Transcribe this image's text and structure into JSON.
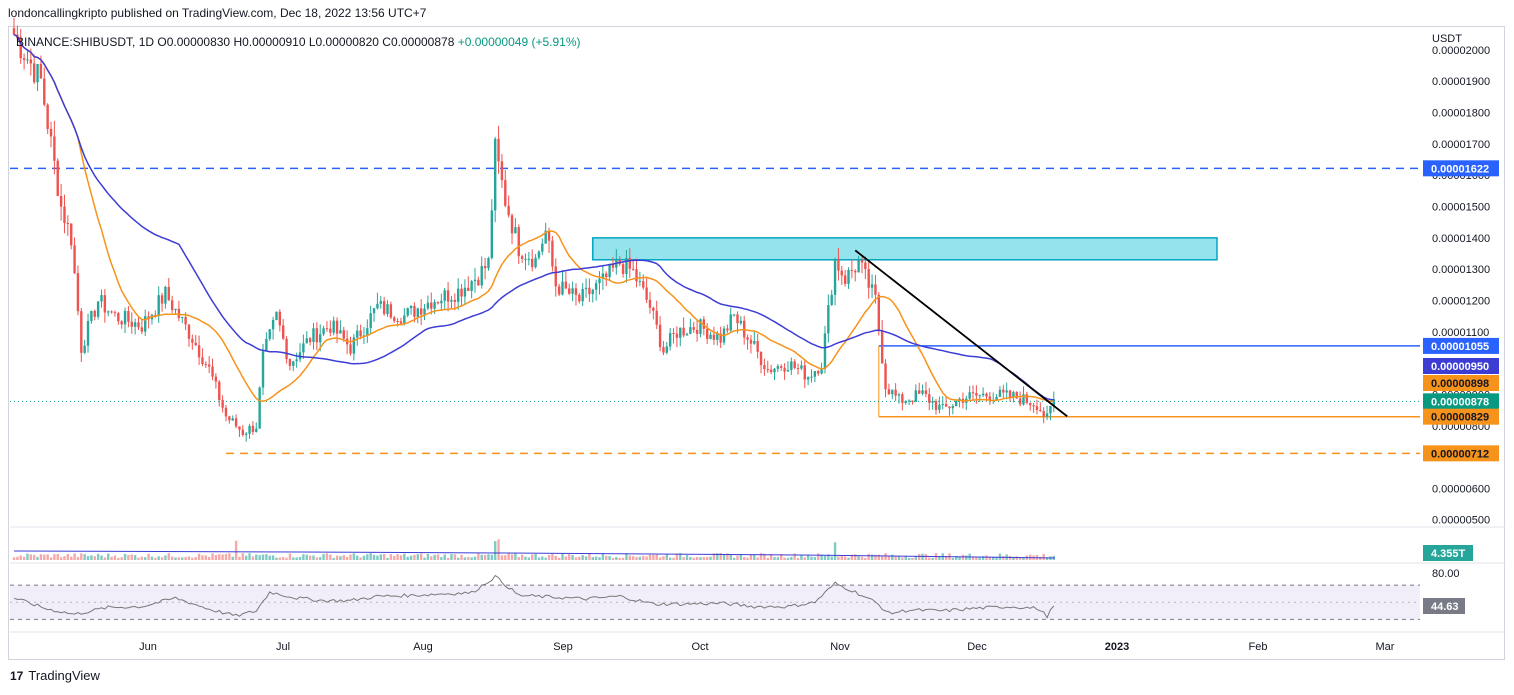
{
  "header": {
    "publisher": "londoncallingkripto published on TradingView.com, Dec 18, 2022 13:56 UTC+7"
  },
  "legend": {
    "symbol": "BINANCE:SHIBUSDT, 1D",
    "open": "O0.00000830",
    "high": "H0.00000910",
    "low": "L0.00000820",
    "close": "C0.00000878",
    "change": "+0.00000049 (+5.91%)"
  },
  "currency": "USDT",
  "footer": {
    "brand": "TradingView"
  },
  "colors": {
    "up": "#26a69a",
    "down": "#ef5350",
    "ma_fast": "#f7931a",
    "ma_slow": "#3d3dd6",
    "level": "#2962ff",
    "support": "#f7931a",
    "zone": "#4dd0e1",
    "last": "#089981",
    "rsi": "#7e57c2"
  },
  "chart_data": {
    "type": "candlestick",
    "ylim": [
      4.8e-06,
      2.07e-05
    ],
    "y_ticks": [
      "0.00000500",
      "0.00000600",
      "0.00000700",
      "0.00000800",
      "0.00000900",
      "0.00001000",
      "0.00001100",
      "0.00001200",
      "0.00001300",
      "0.00001400",
      "0.00001500",
      "0.00001600",
      "0.00001700",
      "0.00001800",
      "0.00001900",
      "0.00002000"
    ],
    "x_labels": [
      "Jun",
      "Jul",
      "Aug",
      "Sep",
      "Oct",
      "Nov",
      "Dec",
      "2023",
      "Feb",
      "Mar"
    ],
    "price_labels": {
      "resistance_top": "0.00001622",
      "resistance_mid": "0.00001055",
      "ma_slow": "0.00000950",
      "ma_fast": "0.00000898",
      "last": "0.00000878",
      "support": "0.00000829",
      "low_support": "0.00000712"
    },
    "levels": {
      "resistance_top": 1.622e-05,
      "resistance_mid": 1.055e-05,
      "support": 8.29e-06,
      "low_support": 7.12e-06,
      "last": 8.78e-06
    },
    "zone": {
      "low": 1.33e-05,
      "high": 1.4e-05
    },
    "trendline": {
      "start_price": 1.36e-05,
      "end_price": 8.3e-06
    },
    "anchors": [
      {
        "i": 0,
        "p": 2.05e-05
      },
      {
        "i": 8,
        "p": 1.9e-05
      },
      {
        "i": 14,
        "p": 1.5e-05
      },
      {
        "i": 17,
        "p": 1.4e-05
      },
      {
        "i": 20,
        "p": 1.05e-05
      },
      {
        "i": 25,
        "p": 1.2e-05
      },
      {
        "i": 30,
        "p": 1.15e-05
      },
      {
        "i": 38,
        "p": 1.12e-05
      },
      {
        "i": 45,
        "p": 1.22e-05
      },
      {
        "i": 53,
        "p": 1.08e-05
      },
      {
        "i": 58,
        "p": 9.8e-06
      },
      {
        "i": 63,
        "p": 8.3e-06
      },
      {
        "i": 68,
        "p": 7.8e-06
      },
      {
        "i": 72,
        "p": 8e-06
      },
      {
        "i": 74,
        "p": 1.02e-05
      },
      {
        "i": 78,
        "p": 1.15e-05
      },
      {
        "i": 82,
        "p": 1e-05
      },
      {
        "i": 88,
        "p": 1.08e-05
      },
      {
        "i": 94,
        "p": 1.12e-05
      },
      {
        "i": 100,
        "p": 1.05e-05
      },
      {
        "i": 108,
        "p": 1.18e-05
      },
      {
        "i": 116,
        "p": 1.15e-05
      },
      {
        "i": 124,
        "p": 1.2e-05
      },
      {
        "i": 132,
        "p": 1.23e-05
      },
      {
        "i": 138,
        "p": 1.28e-05
      },
      {
        "i": 141,
        "p": 1.32e-05
      },
      {
        "i": 143,
        "p": 1.68e-05
      },
      {
        "i": 146,
        "p": 1.52e-05
      },
      {
        "i": 150,
        "p": 1.37e-05
      },
      {
        "i": 155,
        "p": 1.33e-05
      },
      {
        "i": 158,
        "p": 1.42e-05
      },
      {
        "i": 161,
        "p": 1.25e-05
      },
      {
        "i": 168,
        "p": 1.2e-05
      },
      {
        "i": 175,
        "p": 1.26e-05
      },
      {
        "i": 180,
        "p": 1.32e-05
      },
      {
        "i": 184,
        "p": 1.29e-05
      },
      {
        "i": 189,
        "p": 1.18e-05
      },
      {
        "i": 193,
        "p": 1.04e-05
      },
      {
        "i": 197,
        "p": 1.1e-05
      },
      {
        "i": 203,
        "p": 1.12e-05
      },
      {
        "i": 210,
        "p": 1.08e-05
      },
      {
        "i": 214,
        "p": 1.15e-05
      },
      {
        "i": 220,
        "p": 1.05e-05
      },
      {
        "i": 224,
        "p": 9.8e-06
      },
      {
        "i": 230,
        "p": 1e-05
      },
      {
        "i": 236,
        "p": 9.6e-06
      },
      {
        "i": 240,
        "p": 1e-05
      },
      {
        "i": 244,
        "p": 1.33e-05
      },
      {
        "i": 247,
        "p": 1.27e-05
      },
      {
        "i": 251,
        "p": 1.32e-05
      },
      {
        "i": 256,
        "p": 1.2e-05
      },
      {
        "i": 259,
        "p": 9.3e-06
      },
      {
        "i": 263,
        "p": 8.8e-06
      },
      {
        "i": 270,
        "p": 9e-06
      },
      {
        "i": 276,
        "p": 8.5e-06
      },
      {
        "i": 282,
        "p": 8.9e-06
      },
      {
        "i": 290,
        "p": 9e-06
      },
      {
        "i": 298,
        "p": 8.9e-06
      },
      {
        "i": 304,
        "p": 8.7e-06
      },
      {
        "i": 307,
        "p": 8.2e-06
      },
      {
        "i": 309,
        "p": 8.8e-06
      }
    ],
    "volume": {
      "label": "4.355T"
    },
    "rsi": {
      "ylim": [
        20,
        90
      ],
      "bands": [
        30,
        70
      ],
      "band_label": "80.00",
      "last": "44.63",
      "anchors": [
        {
          "i": 0,
          "v": 55
        },
        {
          "i": 10,
          "v": 42
        },
        {
          "i": 18,
          "v": 36
        },
        {
          "i": 28,
          "v": 44
        },
        {
          "i": 38,
          "v": 45
        },
        {
          "i": 48,
          "v": 55
        },
        {
          "i": 58,
          "v": 42
        },
        {
          "i": 66,
          "v": 34
        },
        {
          "i": 72,
          "v": 40
        },
        {
          "i": 76,
          "v": 62
        },
        {
          "i": 84,
          "v": 55
        },
        {
          "i": 92,
          "v": 52
        },
        {
          "i": 100,
          "v": 52
        },
        {
          "i": 108,
          "v": 57
        },
        {
          "i": 118,
          "v": 58
        },
        {
          "i": 128,
          "v": 60
        },
        {
          "i": 136,
          "v": 61
        },
        {
          "i": 143,
          "v": 80
        },
        {
          "i": 150,
          "v": 58
        },
        {
          "i": 160,
          "v": 56
        },
        {
          "i": 170,
          "v": 54
        },
        {
          "i": 180,
          "v": 57
        },
        {
          "i": 190,
          "v": 48
        },
        {
          "i": 200,
          "v": 48
        },
        {
          "i": 210,
          "v": 49
        },
        {
          "i": 220,
          "v": 45
        },
        {
          "i": 230,
          "v": 45
        },
        {
          "i": 238,
          "v": 50
        },
        {
          "i": 244,
          "v": 72
        },
        {
          "i": 250,
          "v": 62
        },
        {
          "i": 256,
          "v": 50
        },
        {
          "i": 260,
          "v": 37
        },
        {
          "i": 266,
          "v": 41
        },
        {
          "i": 276,
          "v": 40
        },
        {
          "i": 286,
          "v": 43
        },
        {
          "i": 296,
          "v": 45
        },
        {
          "i": 304,
          "v": 43
        },
        {
          "i": 307,
          "v": 34
        },
        {
          "i": 309,
          "v": 45
        }
      ]
    }
  }
}
